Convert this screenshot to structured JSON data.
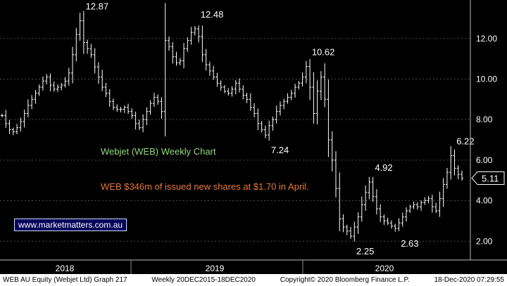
{
  "chart_data": {
    "type": "ohlc-bar",
    "frequency": "weekly",
    "y_ticks": [
      2.0,
      4.0,
      6.0,
      8.0,
      10.0,
      12.0
    ],
    "y_tick_labels": [
      "2.00",
      "4.00",
      "6.00",
      "8.00",
      "10.00",
      "12.00"
    ],
    "ylim": [
      1.35,
      13.9
    ],
    "x_year_labels": [
      "2018",
      "2019",
      "2020"
    ],
    "last_price": 5.11,
    "last_price_label": "5.11",
    "annotations": [
      {
        "label": "12.87",
        "value": 12.87
      },
      {
        "label": "12.48",
        "value": 12.48
      },
      {
        "label": "10.62",
        "value": 10.62
      },
      {
        "label": "7.24",
        "value": 7.24
      },
      {
        "label": "4.92",
        "value": 4.92
      },
      {
        "label": "6.22",
        "value": 6.22
      },
      {
        "label": "2.25",
        "value": 2.25
      },
      {
        "label": "2.63",
        "value": 2.63
      }
    ],
    "price_path": [
      8.2,
      7.8,
      7.5,
      7.4,
      7.6,
      7.9,
      8.3,
      8.7,
      9.0,
      9.3,
      9.6,
      9.9,
      10.1,
      9.7,
      9.5,
      9.6,
      9.7,
      9.9,
      10.3,
      11.2,
      12.2,
      12.87,
      11.8,
      11.5,
      11.2,
      10.6,
      10.1,
      9.6,
      9.3,
      8.9,
      8.6,
      8.5,
      8.5,
      8.6,
      8.4,
      8.2,
      7.8,
      7.6,
      8.0,
      8.4,
      8.8,
      9.1,
      8.9,
      8.4,
      11.9,
      11.6,
      11.1,
      10.8,
      10.9,
      11.5,
      11.9,
      12.3,
      12.48,
      12.1,
      11.2,
      10.7,
      10.4,
      10.1,
      9.8,
      9.6,
      9.4,
      9.3,
      9.5,
      9.8,
      9.5,
      9.2,
      9.0,
      8.6,
      8.3,
      7.8,
      7.5,
      7.24,
      7.7,
      8.0,
      8.4,
      8.7,
      8.9,
      9.1,
      9.3,
      9.6,
      9.8,
      10.1,
      10.62,
      9.6,
      8.3,
      9.4,
      10.1,
      9.0,
      7.0,
      6.0,
      4.6,
      3.1,
      2.7,
      2.5,
      2.25,
      2.7,
      3.2,
      3.8,
      4.4,
      4.92,
      4.2,
      3.6,
      3.2,
      3.0,
      2.9,
      2.75,
      2.63,
      2.9,
      3.2,
      3.5,
      3.7,
      3.8,
      3.7,
      3.9,
      4.0,
      4.1,
      3.7,
      3.5,
      4.1,
      4.8,
      5.4,
      6.22,
      5.6,
      5.3,
      5.11
    ]
  },
  "annotations_text": {
    "title": "Webjet (WEB) Weekly Chart",
    "note": "WEB $346m of issued new shares at $1.70 in April.",
    "website": "www.marketmatters.com.au"
  },
  "footer": {
    "security": "WEB AU Equity (Webjet Ltd) Graph 217",
    "period": "Weekly 20DEC2015-18DEC2020",
    "copyright": "Copyright© 2020 Bloomberg Finance L.P.",
    "timestamp": "18-Dec-2020 07:29:55"
  },
  "colors": {
    "background": "#000000",
    "bars": "#ffffff",
    "grid": "#4a4a4a",
    "title_text": "#8fd97a",
    "note_text": "#e8793a",
    "link_bg": "#00005a"
  }
}
